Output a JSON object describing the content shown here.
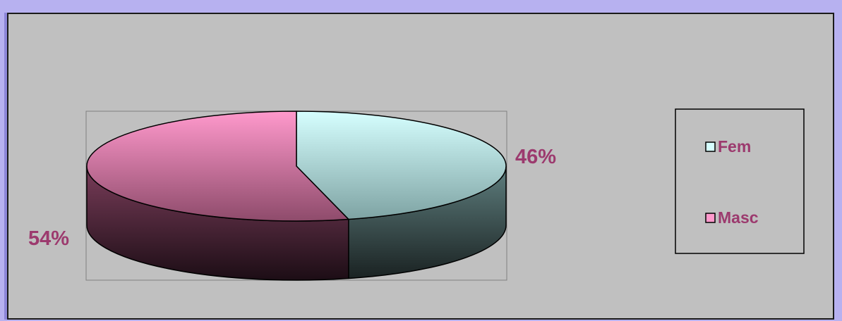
{
  "chart_data": {
    "type": "pie",
    "style": "3d",
    "categories": [
      "Fem",
      "Masc"
    ],
    "values": [
      46,
      54
    ],
    "data_labels": [
      "46%",
      "54%"
    ],
    "legend_position": "right",
    "colors": {
      "Fem": {
        "top_light": "#d6ffff",
        "top_dark": "#7ea3a3",
        "side_light": "#5f7f7f",
        "side_dark": "#1a2222"
      },
      "Masc": {
        "top_light": "#ff99cc",
        "top_dark": "#8e4b6b",
        "side_light": "#7a3d5a",
        "side_dark": "#1c0d15"
      },
      "label_color": "#9c3a6e",
      "plot_background": "#c0c0c0",
      "page_background": "#b7b1f0"
    }
  }
}
